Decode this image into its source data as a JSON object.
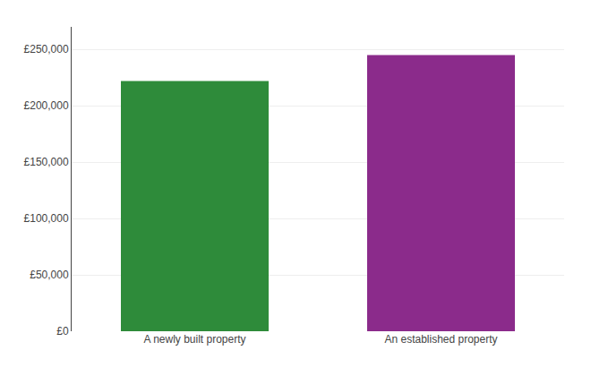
{
  "chart_data": {
    "type": "bar",
    "categories": [
      "A newly built property",
      "An established property"
    ],
    "values": [
      222000,
      245000
    ],
    "colors": [
      "#2e8b3a",
      "#8b2b8b"
    ],
    "ylim": [
      0,
      270000
    ],
    "yticks": [
      {
        "value": 0,
        "label": "£0"
      },
      {
        "value": 50000,
        "label": "£50,000"
      },
      {
        "value": 100000,
        "label": "£100,000"
      },
      {
        "value": 150000,
        "label": "£150,000"
      },
      {
        "value": 200000,
        "label": "£200,000"
      },
      {
        "value": 250000,
        "label": "£250,000"
      }
    ],
    "grid": true
  }
}
